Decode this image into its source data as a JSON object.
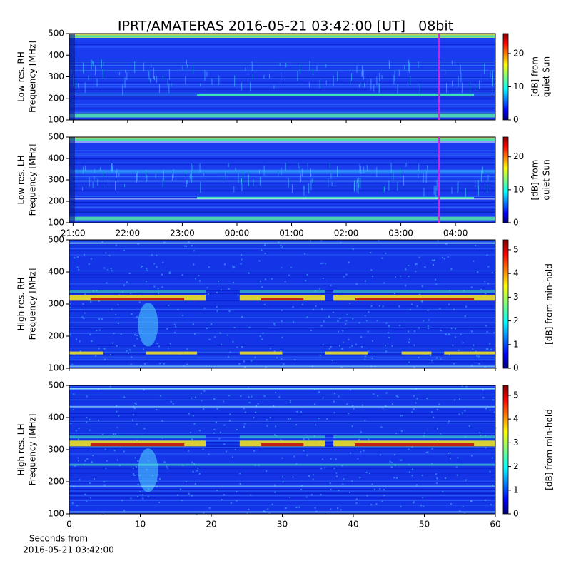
{
  "title": "IPRT/AMATERAS 2016-05-21 03:42:00 [UT]   08bit",
  "chart_data": [
    {
      "type": "heatmap",
      "ylabel": [
        "Low res. RH",
        "Frequency [MHz]"
      ],
      "ylim": [
        100,
        500
      ],
      "yticks": [
        100,
        200,
        300,
        400,
        500
      ],
      "xlim": [
        20.93,
        28.73
      ],
      "vlines": [
        {
          "x": 27.7,
          "color": "#e020e0"
        }
      ],
      "colorbar": {
        "label": [
          "[dB] from",
          "quiet Sun"
        ],
        "clim": [
          0,
          26
        ],
        "ticks": [
          0,
          10,
          20
        ],
        "colormap": "jet"
      }
    },
    {
      "type": "heatmap",
      "ylabel": [
        "Low res. LH",
        "Frequency [MHz]"
      ],
      "ylim": [
        100,
        500
      ],
      "yticks": [
        100,
        200,
        300,
        400,
        500
      ],
      "xlim": [
        20.93,
        28.73
      ],
      "xticks": [
        {
          "value": 21,
          "label": "21:00"
        },
        {
          "value": 22,
          "label": "22:00"
        },
        {
          "value": 23,
          "label": "23:00"
        },
        {
          "value": 24,
          "label": "00:00"
        },
        {
          "value": 25,
          "label": "01:00"
        },
        {
          "value": 26,
          "label": "02:00"
        },
        {
          "value": 27,
          "label": "03:00"
        },
        {
          "value": 28,
          "label": "04:00"
        }
      ],
      "vlines": [
        {
          "x": 27.7,
          "color": "#e020e0"
        }
      ],
      "colorbar": {
        "label": [
          "[dB] from",
          "quiet Sun"
        ],
        "clim": [
          0,
          26
        ],
        "ticks": [
          0,
          10,
          20
        ],
        "colormap": "jet"
      }
    },
    {
      "type": "heatmap",
      "ylabel": [
        "High res. RH",
        "Frequency [MHz]"
      ],
      "ylim": [
        100,
        500
      ],
      "yticks": [
        100,
        200,
        300,
        400,
        500
      ],
      "xlim": [
        0,
        60
      ],
      "colorbar": {
        "label": [
          "[dB] from min-hold"
        ],
        "clim": [
          0,
          5.42
        ],
        "ticks": [
          0,
          1,
          2,
          3,
          4,
          5
        ],
        "colormap": "jet"
      }
    },
    {
      "type": "heatmap",
      "ylabel": [
        "High res. LH",
        "Frequency [MHz]"
      ],
      "ylim": [
        100,
        500
      ],
      "yticks": [
        100,
        200,
        300,
        400,
        500
      ],
      "xlim": [
        0,
        60
      ],
      "xticks": [
        0,
        10,
        20,
        30,
        40,
        50,
        60
      ],
      "xlabel": [
        "Seconds from",
        "2016-05-21 03:42:00"
      ],
      "colorbar": {
        "label": [
          "[dB] from min-hold"
        ],
        "clim": [
          0,
          5.42
        ],
        "ticks": [
          0,
          1,
          2,
          3,
          4,
          5
        ],
        "colormap": "jet"
      }
    }
  ]
}
